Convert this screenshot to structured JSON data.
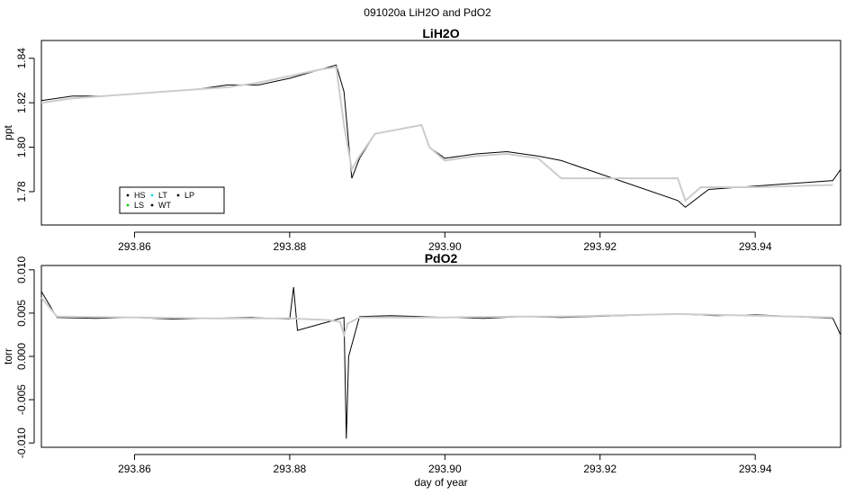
{
  "suptitle": "091020a   LiH2O and PdO2",
  "legend": {
    "items": [
      {
        "key": "HS",
        "label": "HS",
        "color": "#000000"
      },
      {
        "key": "LT",
        "label": "LT",
        "color": "#00e5ee"
      },
      {
        "key": "LP",
        "label": "LP",
        "color": "#000000"
      },
      {
        "key": "LS",
        "label": "LS",
        "color": "#00cd00"
      },
      {
        "key": "WT",
        "label": "WT",
        "color": "#000000"
      }
    ]
  },
  "colors": {
    "raw": "#000000",
    "smooth": "#cccccc",
    "legs": [
      "#00cd00",
      "#00e5ee",
      "#0000cd"
    ]
  },
  "chart_data": [
    {
      "type": "line",
      "title": "LiH2O",
      "xlabel": "",
      "ylabel": "ppt",
      "xlim": [
        293.848,
        293.951
      ],
      "ylim": [
        1.765,
        1.848
      ],
      "xticks": [
        293.86,
        293.88,
        293.9,
        293.92,
        293.94
      ],
      "xtick_labels": [
        "293.86",
        "293.88",
        "293.90",
        "293.92",
        "293.94"
      ],
      "yticks": [
        1.78,
        1.8,
        1.82,
        1.84
      ],
      "ytick_labels": [
        "1.78",
        "1.80",
        "1.82",
        "1.84"
      ],
      "grid": false,
      "legend_position": "bottom-left",
      "series": [
        {
          "role": "raw",
          "x": [
            293.848,
            293.852,
            293.856,
            293.86,
            293.864,
            293.868,
            293.872,
            293.876,
            293.88,
            293.883,
            293.886,
            293.887,
            293.888,
            293.889,
            293.891,
            293.894,
            293.897,
            293.898,
            293.9,
            293.904,
            293.908,
            293.912,
            293.915,
            293.93,
            293.931,
            293.934,
            293.938,
            293.942,
            293.946,
            293.95,
            293.951
          ],
          "y": [
            1.821,
            1.823,
            1.823,
            1.824,
            1.825,
            1.826,
            1.828,
            1.828,
            1.831,
            1.834,
            1.837,
            1.825,
            1.786,
            1.795,
            1.806,
            1.808,
            1.81,
            1.8,
            1.795,
            1.797,
            1.798,
            1.796,
            1.794,
            1.776,
            1.773,
            1.781,
            1.782,
            1.783,
            1.784,
            1.785,
            1.79
          ]
        },
        {
          "role": "smooth",
          "x": [
            293.848,
            293.852,
            293.856,
            293.86,
            293.864,
            293.868,
            293.872,
            293.876,
            293.88,
            293.884,
            293.886,
            293.887,
            293.888,
            293.889,
            293.891,
            293.894,
            293.897,
            293.898,
            293.9,
            293.904,
            293.908,
            293.912,
            293.915,
            293.93,
            293.931,
            293.933,
            293.94,
            293.95
          ],
          "y": [
            1.82,
            1.822,
            1.823,
            1.824,
            1.825,
            1.826,
            1.827,
            1.829,
            1.832,
            1.835,
            1.836,
            1.81,
            1.79,
            1.796,
            1.806,
            1.808,
            1.81,
            1.8,
            1.794,
            1.796,
            1.797,
            1.795,
            1.786,
            1.786,
            1.776,
            1.782,
            1.782,
            1.783
          ]
        }
      ]
    },
    {
      "type": "line",
      "title": "PdO2",
      "xlabel": "day of year",
      "ylabel": "torr",
      "xlim": [
        293.848,
        293.951
      ],
      "ylim": [
        -0.0105,
        0.0105
      ],
      "xticks": [
        293.86,
        293.88,
        293.9,
        293.92,
        293.94
      ],
      "xtick_labels": [
        "293.86",
        "293.88",
        "293.90",
        "293.92",
        "293.94"
      ],
      "yticks": [
        -0.01,
        -0.005,
        0.0,
        0.005,
        0.01
      ],
      "ytick_labels": [
        "-0.010",
        "-0.005",
        "0.000",
        "0.005",
        "0.010"
      ],
      "grid": false,
      "series": [
        {
          "role": "raw",
          "x": [
            293.848,
            293.849,
            293.85,
            293.855,
            293.86,
            293.865,
            293.87,
            293.875,
            293.88,
            293.8805,
            293.881,
            293.885,
            293.887,
            293.8873,
            293.8876,
            293.889,
            293.893,
            293.897,
            293.9,
            293.905,
            293.91,
            293.915,
            293.93,
            293.935,
            293.94,
            293.945,
            293.95,
            293.951
          ],
          "y": [
            0.0075,
            0.006,
            0.0045,
            0.0044,
            0.0045,
            0.0043,
            0.0044,
            0.0045,
            0.0043,
            0.008,
            0.003,
            0.004,
            0.0045,
            -0.0095,
            0.0,
            0.0046,
            0.0047,
            0.0046,
            0.0045,
            0.0044,
            0.0046,
            0.0045,
            0.0049,
            0.0047,
            0.0048,
            0.0046,
            0.0044,
            0.0025
          ]
        },
        {
          "role": "smooth",
          "x": [
            293.848,
            293.85,
            293.86,
            293.87,
            293.88,
            293.885,
            293.8865,
            293.887,
            293.8875,
            293.889,
            293.9,
            293.91,
            293.915,
            293.93,
            293.94,
            293.95
          ],
          "y": [
            0.0068,
            0.0046,
            0.0045,
            0.0044,
            0.0044,
            0.0042,
            0.004,
            0.0025,
            0.0038,
            0.0045,
            0.0045,
            0.0046,
            0.0046,
            0.0049,
            0.0047,
            0.0045
          ]
        }
      ]
    }
  ]
}
